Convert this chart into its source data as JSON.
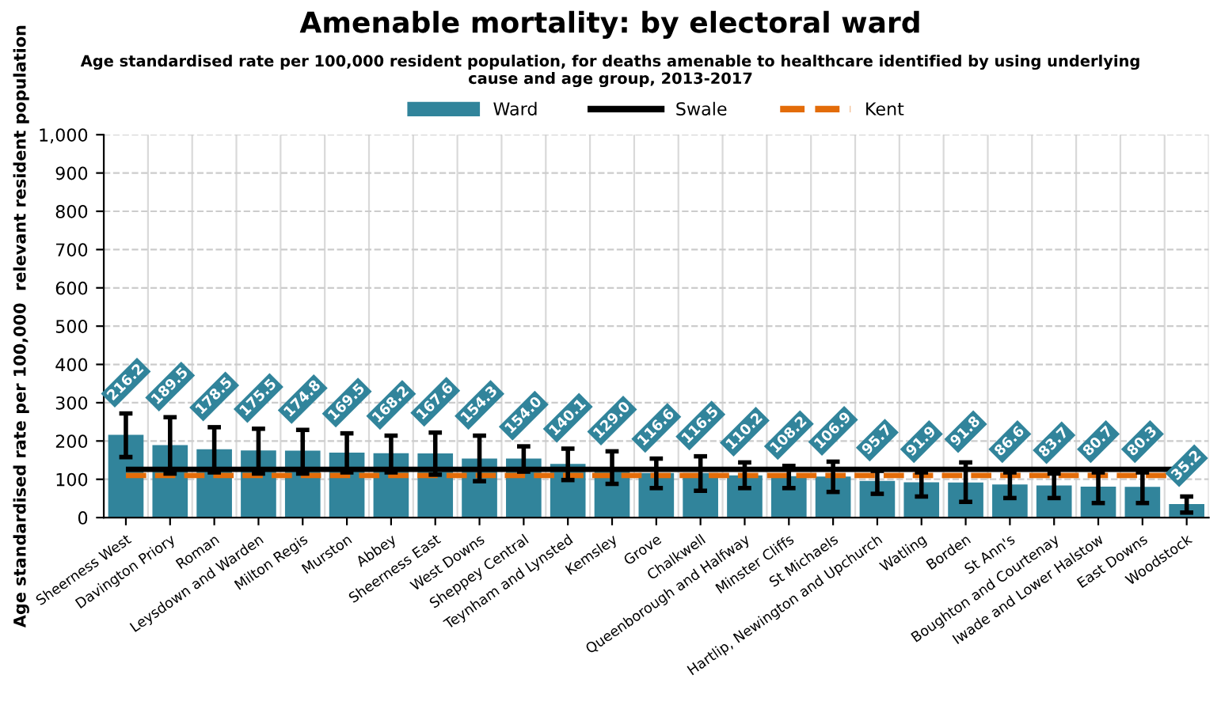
{
  "chart_data": {
    "type": "bar",
    "title": "Amenable mortality: by electoral ward",
    "subtitle": "Age standardised rate per 100,000 resident population, for deaths amenable to healthcare identified by using underlying\ncause and age group, 2013-2017",
    "ylabel": "Age standardised rate per 100,000  relevant resident population",
    "categories": [
      "Sheerness West",
      "Davington Priory",
      "Roman",
      "Leysdown and Warden",
      "Milton Regis",
      "Murston",
      "Abbey",
      "Sheerness East",
      "West Downs",
      "Sheppey Central",
      "Teynham and Lynsted",
      "Kemsley",
      "Grove",
      "Chalkwell",
      "Queenborough and Halfway",
      "Minster Cliffs",
      "St Michaels",
      "Hartlip, Newington and Upchurch",
      "Watling",
      "Borden",
      "St Ann's",
      "Boughton and Courtenay",
      "Iwade and Lower Halstow",
      "East Downs",
      "Woodstock"
    ],
    "series": [
      {
        "name": "Ward",
        "color": "#31849b",
        "values": [
          216.2,
          189.5,
          178.5,
          175.5,
          174.8,
          169.5,
          168.2,
          167.6,
          154.3,
          154.0,
          140.1,
          129.0,
          116.6,
          116.5,
          110.2,
          108.2,
          106.9,
          95.7,
          91.9,
          91.8,
          86.6,
          83.7,
          80.7,
          80.3,
          35.2
        ],
        "value_labels": [
          "216.2",
          "189.5",
          "178.5",
          "175.5",
          "174.8",
          "169.5",
          "168.2",
          "167.6",
          "154.3",
          "154.0",
          "140.1",
          "129.0",
          "116.6",
          "116.5",
          "110.2",
          "108.2",
          "106.9",
          "95.7",
          "91.9",
          "91.8",
          "86.6",
          "83.7",
          "80.7",
          "80.3",
          "35.2"
        ],
        "errors": [
          [
            158,
            272
          ],
          [
            115,
            262
          ],
          [
            118,
            236
          ],
          [
            115,
            232
          ],
          [
            115,
            229
          ],
          [
            118,
            220
          ],
          [
            118,
            214
          ],
          [
            112,
            222
          ],
          [
            95,
            214
          ],
          [
            120,
            186
          ],
          [
            98,
            180
          ],
          [
            88,
            173
          ],
          [
            77,
            154
          ],
          [
            70,
            160
          ],
          [
            77,
            144
          ],
          [
            77,
            135
          ],
          [
            67,
            146
          ],
          [
            62,
            122
          ],
          [
            55,
            118
          ],
          [
            41,
            144
          ],
          [
            51,
            118
          ],
          [
            51,
            115
          ],
          [
            38,
            118
          ],
          [
            38,
            118
          ],
          [
            13,
            55
          ]
        ]
      }
    ],
    "ref_lines": [
      {
        "axis": "y",
        "value": 126,
        "label": "Swale",
        "color": "#000000",
        "line_style": "solid"
      },
      {
        "axis": "y",
        "value": 110,
        "label": "Kent",
        "color": "#e36c09",
        "line_style": "dashed"
      }
    ],
    "ylim": [
      0,
      1000
    ],
    "yticks": [
      0,
      100,
      200,
      300,
      400,
      500,
      600,
      700,
      800,
      900,
      {
        "value": 1000,
        "label": "1,000"
      }
    ],
    "grid": true,
    "legend": "top"
  }
}
